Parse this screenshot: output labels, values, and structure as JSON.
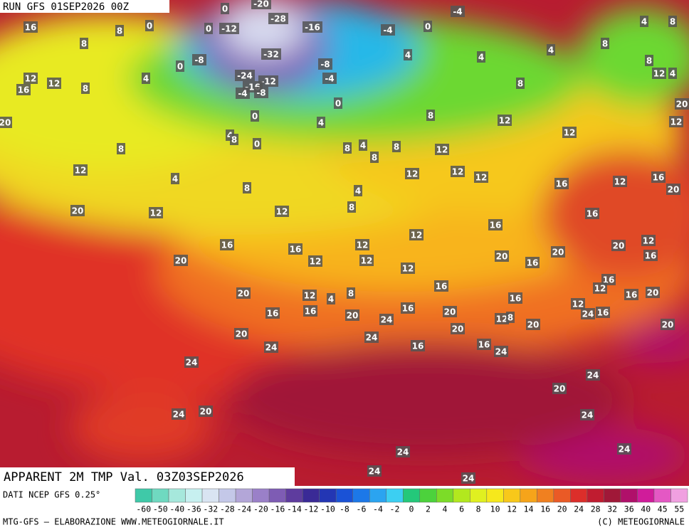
{
  "header": {
    "run": "RUN GFS 01SEP2026 00Z",
    "title": "APPARENT 2M TMP Val. 03Z03SEP2026",
    "source": "DATI NCEP GFS 0.25°",
    "footer_left": "MTG-GFS — ELABORAZIONE WWW.METEOGIORNALE.IT",
    "footer_right": "(C) METEOGIORNALE"
  },
  "legend": {
    "labels": [
      -60,
      -50,
      -40,
      -36,
      -32,
      -28,
      -24,
      -20,
      -16,
      -14,
      -12,
      -10,
      -8,
      -6,
      -4,
      -2,
      0,
      2,
      4,
      6,
      8,
      10,
      12,
      14,
      16,
      20,
      24,
      28,
      32,
      36,
      40,
      45,
      55
    ],
    "colors": [
      "#3fc9a8",
      "#6fd9c0",
      "#a6e8dc",
      "#c7f0f0",
      "#d9e4f2",
      "#c4c8e8",
      "#b3a6d8",
      "#9a80c8",
      "#7e5cb4",
      "#5e3c9e",
      "#3a2a96",
      "#2336b4",
      "#1a52d6",
      "#1c78e8",
      "#2ba4f0",
      "#3ccff2",
      "#24c87a",
      "#4cd23c",
      "#7cdc28",
      "#b2e81e",
      "#e0f020",
      "#f6e81c",
      "#f8c81a",
      "#f6a41a",
      "#f08020",
      "#ea5a26",
      "#dc2e2a",
      "#c01c30",
      "#a01838",
      "#b0106a",
      "#d01c9a",
      "#e458c4",
      "#f0a0e0"
    ]
  },
  "map_labels": [
    16,
    8,
    0,
    8,
    12,
    12,
    16,
    8,
    4,
    20,
    8,
    12,
    4,
    8,
    20,
    12,
    20,
    16,
    20,
    20,
    16,
    24,
    24,
    24,
    20,
    0,
    0,
    -12,
    0,
    -8,
    -20,
    -28,
    -16,
    -32,
    -24,
    -12,
    -16,
    -4,
    -8,
    -8,
    -4,
    0,
    0,
    0,
    4,
    8,
    4,
    -4,
    0,
    -4,
    4,
    4,
    4,
    8,
    8,
    8,
    12,
    12,
    12,
    12,
    12,
    12,
    8,
    8,
    4,
    8,
    4,
    8,
    12,
    16,
    12,
    12,
    12,
    12,
    12,
    16,
    16,
    16,
    12,
    16,
    20,
    20,
    16,
    20,
    20,
    12,
    16,
    16,
    12,
    16,
    20,
    16,
    16,
    12,
    24,
    16,
    12,
    16,
    4,
    8,
    20,
    24,
    16,
    20,
    12,
    8,
    20,
    20,
    24,
    16,
    16,
    24,
    20,
    24,
    20,
    24,
    24,
    24,
    24,
    24,
    4,
    8,
    8,
    12,
    4,
    12,
    20
  ]
}
